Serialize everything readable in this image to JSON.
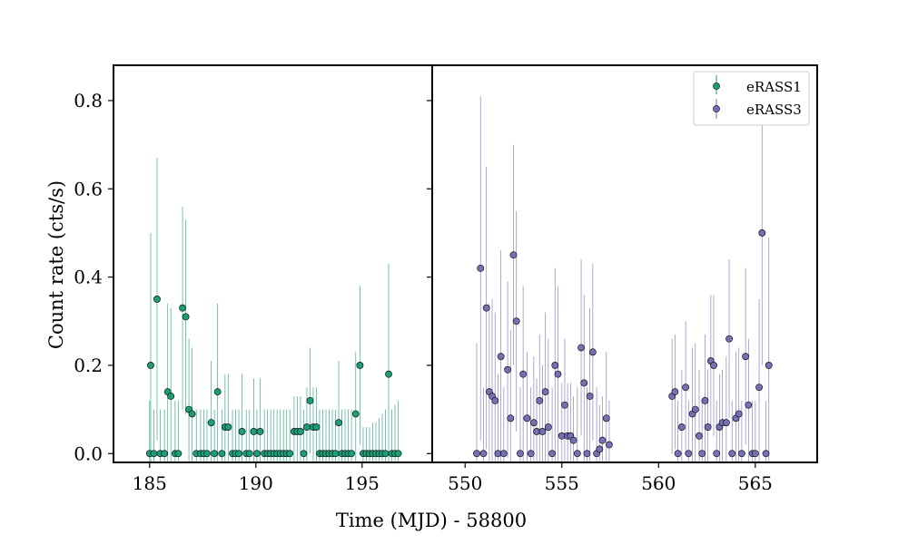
{
  "chart_data": {
    "type": "scatter",
    "xlabel": "Time (MJD) - 58800",
    "ylabel": "Count rate (cts/s)",
    "ylim": [
      -0.02,
      0.88
    ],
    "yticks": [
      "0.0",
      "0.2",
      "0.4",
      "0.6",
      "0.8"
    ],
    "legend_position": "top-right",
    "panels": [
      {
        "xlim": [
          183.3,
          198.3
        ],
        "xticks": [
          "185",
          "190",
          "195"
        ],
        "series": [
          {
            "name": "eRASS1",
            "color": "#1b9e77",
            "points": [
              [
                185.0,
                0.0,
                0.12
              ],
              [
                185.05,
                0.2,
                0.3
              ],
              [
                185.2,
                0.0,
                0.1
              ],
              [
                185.35,
                0.35,
                0.32
              ],
              [
                185.5,
                0.0,
                0.1
              ],
              [
                185.7,
                0.0,
                0.1
              ],
              [
                185.85,
                0.14,
                0.2
              ],
              [
                186.0,
                0.13,
                0.2
              ],
              [
                186.2,
                0.0,
                0.12
              ],
              [
                186.35,
                0.0,
                0.12
              ],
              [
                186.55,
                0.33,
                0.23
              ],
              [
                186.7,
                0.31,
                0.22
              ],
              [
                186.85,
                0.1,
                0.16
              ],
              [
                187.0,
                0.09,
                0.15
              ],
              [
                187.2,
                0.0,
                0.1
              ],
              [
                187.4,
                0.0,
                0.1
              ],
              [
                187.55,
                0.0,
                0.1
              ],
              [
                187.7,
                0.0,
                0.1
              ],
              [
                187.9,
                0.07,
                0.14
              ],
              [
                188.05,
                0.0,
                0.1
              ],
              [
                188.2,
                0.14,
                0.2
              ],
              [
                188.4,
                0.0,
                0.1
              ],
              [
                188.55,
                0.06,
                0.12
              ],
              [
                188.7,
                0.06,
                0.12
              ],
              [
                188.9,
                0.0,
                0.1
              ],
              [
                189.05,
                0.0,
                0.1
              ],
              [
                189.2,
                0.0,
                0.1
              ],
              [
                189.35,
                0.05,
                0.13
              ],
              [
                189.55,
                0.0,
                0.1
              ],
              [
                189.7,
                0.0,
                0.1
              ],
              [
                189.9,
                0.05,
                0.12
              ],
              [
                190.05,
                0.0,
                0.1
              ],
              [
                190.2,
                0.05,
                0.12
              ],
              [
                190.4,
                0.0,
                0.1
              ],
              [
                190.55,
                0.0,
                0.1
              ],
              [
                190.7,
                0.0,
                0.1
              ],
              [
                190.85,
                0.0,
                0.1
              ],
              [
                191.0,
                0.0,
                0.1
              ],
              [
                191.15,
                0.0,
                0.1
              ],
              [
                191.3,
                0.0,
                0.1
              ],
              [
                191.45,
                0.0,
                0.1
              ],
              [
                191.6,
                0.0,
                0.1
              ],
              [
                191.8,
                0.05,
                0.08
              ],
              [
                191.95,
                0.05,
                0.08
              ],
              [
                192.1,
                0.05,
                0.08
              ],
              [
                192.25,
                0.0,
                0.1
              ],
              [
                192.4,
                0.06,
                0.09
              ],
              [
                192.55,
                0.12,
                0.12
              ],
              [
                192.7,
                0.06,
                0.09
              ],
              [
                192.85,
                0.06,
                0.09
              ],
              [
                193.0,
                0.0,
                0.1
              ],
              [
                193.15,
                0.0,
                0.1
              ],
              [
                193.3,
                0.0,
                0.1
              ],
              [
                193.45,
                0.0,
                0.1
              ],
              [
                193.6,
                0.0,
                0.1
              ],
              [
                193.75,
                0.0,
                0.1
              ],
              [
                193.9,
                0.07,
                0.14
              ],
              [
                194.05,
                0.0,
                0.1
              ],
              [
                194.2,
                0.0,
                0.1
              ],
              [
                194.35,
                0.0,
                0.1
              ],
              [
                194.5,
                0.0,
                0.1
              ],
              [
                194.7,
                0.09,
                0.14
              ],
              [
                194.9,
                0.2,
                0.18
              ],
              [
                195.05,
                0.0,
                0.06
              ],
              [
                195.2,
                0.0,
                0.06
              ],
              [
                195.35,
                0.0,
                0.06
              ],
              [
                195.5,
                0.0,
                0.07
              ],
              [
                195.65,
                0.0,
                0.07
              ],
              [
                195.8,
                0.0,
                0.08
              ],
              [
                195.95,
                0.0,
                0.09
              ],
              [
                196.1,
                0.0,
                0.1
              ],
              [
                196.25,
                0.18,
                0.25
              ],
              [
                196.4,
                0.0,
                0.1
              ],
              [
                196.55,
                0.0,
                0.11
              ],
              [
                196.7,
                0.0,
                0.12
              ]
            ]
          }
        ]
      },
      {
        "xlim": [
          548.3,
          568.2
        ],
        "xticks": [
          "550",
          "555",
          "560",
          "565"
        ],
        "series": [
          {
            "name": "eRASS3",
            "color": "#7570b3",
            "points": [
              [
                550.6,
                0.0,
                0.25
              ],
              [
                550.8,
                0.42,
                0.39
              ],
              [
                550.95,
                0.0,
                0.15
              ],
              [
                551.1,
                0.33,
                0.32
              ],
              [
                551.25,
                0.14,
                0.2
              ],
              [
                551.4,
                0.13,
                0.22
              ],
              [
                551.55,
                0.12,
                0.2
              ],
              [
                551.7,
                0.0,
                0.18
              ],
              [
                551.85,
                0.22,
                0.24
              ],
              [
                552.0,
                0.0,
                0.15
              ],
              [
                552.2,
                0.19,
                0.2
              ],
              [
                552.35,
                0.08,
                0.2
              ],
              [
                552.5,
                0.45,
                0.25
              ],
              [
                552.65,
                0.3,
                0.25
              ],
              [
                552.85,
                0.0,
                0.15
              ],
              [
                553.0,
                0.18,
                0.2
              ],
              [
                553.2,
                0.08,
                0.15
              ],
              [
                553.4,
                0.0,
                0.15
              ],
              [
                553.55,
                0.07,
                0.15
              ],
              [
                553.7,
                0.05,
                0.12
              ],
              [
                553.85,
                0.12,
                0.15
              ],
              [
                554.0,
                0.05,
                0.15
              ],
              [
                554.15,
                0.14,
                0.18
              ],
              [
                554.3,
                0.06,
                0.2
              ],
              [
                554.5,
                0.0,
                0.15
              ],
              [
                554.65,
                0.2,
                0.22
              ],
              [
                554.8,
                0.18,
                0.2
              ],
              [
                555.0,
                0.04,
                0.12
              ],
              [
                555.15,
                0.11,
                0.15
              ],
              [
                555.3,
                0.04,
                0.12
              ],
              [
                555.45,
                0.04,
                0.12
              ],
              [
                555.6,
                0.03,
                0.1
              ],
              [
                555.8,
                0.0,
                0.15
              ],
              [
                556.0,
                0.24,
                0.2
              ],
              [
                556.15,
                0.16,
                0.2
              ],
              [
                556.3,
                0.0,
                0.15
              ],
              [
                556.45,
                0.13,
                0.2
              ],
              [
                556.6,
                0.23,
                0.2
              ],
              [
                556.8,
                0.0,
                0.15
              ],
              [
                556.95,
                0.01,
                0.1
              ],
              [
                557.1,
                0.03,
                0.1
              ],
              [
                557.3,
                0.08,
                0.15
              ],
              [
                557.45,
                0.02,
                0.1
              ],
              [
                560.7,
                0.13,
                0.13
              ],
              [
                560.85,
                0.14,
                0.13
              ],
              [
                561.0,
                0.0,
                0.12
              ],
              [
                561.2,
                0.06,
                0.13
              ],
              [
                561.4,
                0.15,
                0.15
              ],
              [
                561.55,
                0.0,
                0.12
              ],
              [
                561.75,
                0.09,
                0.15
              ],
              [
                561.9,
                0.1,
                0.15
              ],
              [
                562.1,
                0.04,
                0.15
              ],
              [
                562.25,
                0.0,
                0.12
              ],
              [
                562.4,
                0.12,
                0.15
              ],
              [
                562.55,
                0.06,
                0.13
              ],
              [
                562.7,
                0.21,
                0.15
              ],
              [
                562.85,
                0.2,
                0.16
              ],
              [
                563.0,
                0.0,
                0.12
              ],
              [
                563.15,
                0.06,
                0.12
              ],
              [
                563.3,
                0.07,
                0.12
              ],
              [
                563.5,
                0.07,
                0.15
              ],
              [
                563.65,
                0.26,
                0.18
              ],
              [
                563.8,
                0.0,
                0.12
              ],
              [
                564.0,
                0.08,
                0.15
              ],
              [
                564.15,
                0.09,
                0.15
              ],
              [
                564.3,
                0.0,
                0.12
              ],
              [
                564.5,
                0.22,
                0.2
              ],
              [
                564.65,
                0.11,
                0.15
              ],
              [
                564.85,
                0.0,
                0.12
              ],
              [
                565.0,
                0.0,
                0.12
              ],
              [
                565.2,
                0.15,
                0.2
              ],
              [
                565.35,
                0.5,
                0.3
              ],
              [
                565.55,
                0.0,
                0.12
              ],
              [
                565.7,
                0.2,
                0.29
              ]
            ]
          }
        ]
      }
    ]
  }
}
